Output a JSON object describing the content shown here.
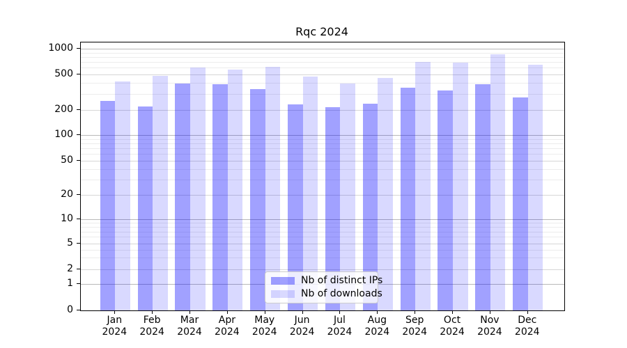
{
  "title": "Rqc 2024",
  "chart_data": {
    "type": "bar",
    "title": "Rqc 2024",
    "categories": [
      "Jan 2024",
      "Feb 2024",
      "Mar 2024",
      "Apr 2024",
      "May 2024",
      "Jun 2024",
      "Jul 2024",
      "Aug 2024",
      "Sep 2024",
      "Oct 2024",
      "Nov 2024",
      "Dec 2024"
    ],
    "series": [
      {
        "name": "Nb of distinct IPs",
        "color": "rgba(0,0,255,0.37)",
        "values": [
          250,
          217,
          395,
          390,
          340,
          230,
          213,
          235,
          355,
          330,
          390,
          275
        ]
      },
      {
        "name": "Nb of downloads",
        "color": "rgba(0,0,255,0.15)",
        "values": [
          420,
          480,
          600,
          565,
          620,
          470,
          395,
          460,
          705,
          685,
          865,
          655
        ]
      }
    ],
    "xlabel": "",
    "ylabel": "",
    "yscale": "symlog",
    "ylim": [
      0,
      1000
    ],
    "yticks": [
      0,
      1,
      2,
      5,
      10,
      20,
      50,
      100,
      200,
      500,
      1000
    ],
    "minor_gridline_values": [
      3,
      4,
      6,
      7,
      8,
      9,
      30,
      40,
      60,
      70,
      80,
      90,
      300,
      400,
      600,
      700,
      800,
      900
    ],
    "grid": "both",
    "legend_position": "lower center"
  },
  "colors": {
    "bar_ips": "rgba(0,0,255,0.37)",
    "bar_downloads": "rgba(0,0,255,0.15)",
    "grid_decade": "#b8b8b8",
    "grid_major": "#d6d6d6",
    "grid_minor": "#ececec",
    "spine": "#000000",
    "background": "#ffffff"
  }
}
